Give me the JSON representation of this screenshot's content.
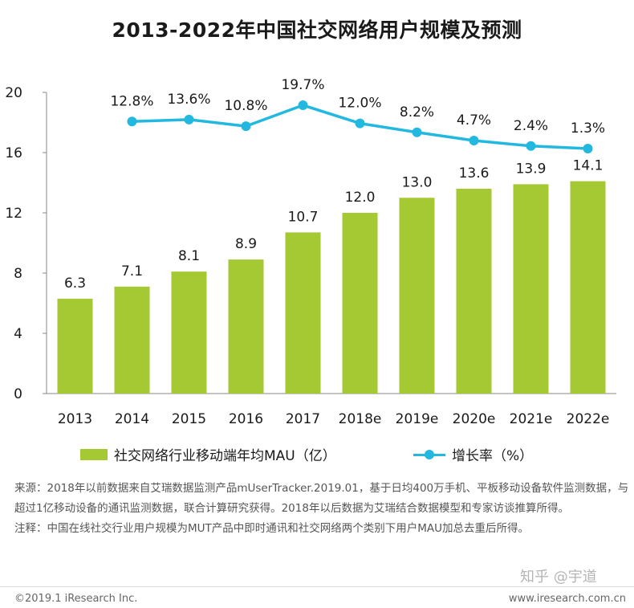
{
  "title": "2013-2022年中国社交网络用户规模及预测",
  "chart_data": {
    "type": "bar",
    "title": "2013-2022年中国社交网络用户规模及预测",
    "categories": [
      "2013",
      "2014",
      "2015",
      "2016",
      "2017",
      "2018e",
      "2019e",
      "2020e",
      "2021e",
      "2022e"
    ],
    "series": [
      {
        "name": "社交网络行业移动端年均MAU（亿）",
        "type": "bar",
        "color": "#a5c933",
        "values": [
          6.3,
          7.1,
          8.1,
          8.9,
          10.7,
          12.0,
          13.0,
          13.6,
          13.9,
          14.1
        ],
        "labels": [
          "6.3",
          "7.1",
          "8.1",
          "8.9",
          "10.7",
          "12.0",
          "13.0",
          "13.6",
          "13.9",
          "14.1"
        ]
      },
      {
        "name": "增长率（%）",
        "type": "line",
        "color": "#22b8e0",
        "values": [
          null,
          12.8,
          13.6,
          10.8,
          19.7,
          12.0,
          8.2,
          4.7,
          2.4,
          1.3
        ],
        "labels": [
          "",
          "12.8%",
          "13.6%",
          "10.8%",
          "19.7%",
          "12.0%",
          "8.2%",
          "4.7%",
          "2.4%",
          "1.3%"
        ]
      }
    ],
    "y_ticks": [
      "0",
      "4",
      "8",
      "12",
      "16",
      "20"
    ],
    "ylim": [
      0,
      20
    ],
    "legend_position": "bottom",
    "grid": false
  },
  "legend": {
    "bar_label": "社交网络行业移动端年均MAU（亿）",
    "line_label": "增长率（%）"
  },
  "notes": {
    "source": "来源：2018年以前数据来自艾瑞数据监测产品mUserTracker.2019.01，基于日均400万手机、平板移动设备软件监测数据，与超过1亿移动设备的通讯监测数据，联合计算研究获得。2018年以后数据为艾瑞结合数据模型和专家访谈推算所得。",
    "remark": "注释：中国在线社交行业用户规模为MUT产品中即时通讯和社交网络两个类别下用户MAU加总去重后所得。"
  },
  "footer": {
    "copyright": "©2019.1 iResearch Inc.",
    "website": "www.iresearch.com.cn"
  },
  "watermark": "知乎 @宇道"
}
